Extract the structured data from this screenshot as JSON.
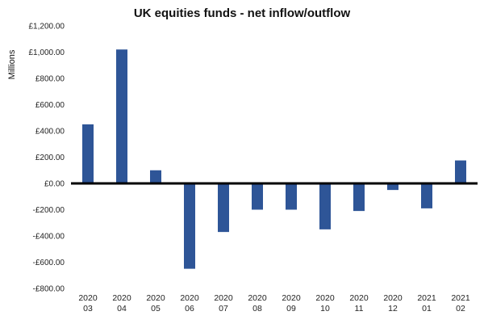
{
  "chart_data": {
    "type": "bar",
    "title": "UK equities funds - net inflow/outflow",
    "xlabel": "",
    "ylabel": "Millions",
    "ylim": [
      -800,
      1200
    ],
    "yticks": [
      1200,
      1000,
      800,
      600,
      400,
      200,
      0,
      -200,
      -400,
      -600,
      -800
    ],
    "ytick_labels": [
      "£1,200.00",
      "£1,000.00",
      "£800.00",
      "£600.00",
      "£400.00",
      "£200.00",
      "£0.00",
      "-£200.00",
      "-£400.00",
      "-£600.00",
      "-£800.00"
    ],
    "categories": [
      [
        "2020",
        "03"
      ],
      [
        "2020",
        "04"
      ],
      [
        "2020",
        "05"
      ],
      [
        "2020",
        "06"
      ],
      [
        "2020",
        "07"
      ],
      [
        "2020",
        "08"
      ],
      [
        "2020",
        "09"
      ],
      [
        "2020",
        "10"
      ],
      [
        "2020",
        "11"
      ],
      [
        "2020",
        "12"
      ],
      [
        "2021",
        "01"
      ],
      [
        "2021",
        "02"
      ]
    ],
    "values": [
      450,
      1020,
      100,
      -650,
      -370,
      -200,
      -200,
      -350,
      -210,
      -50,
      -190,
      175
    ],
    "bar_color": "#2e5597",
    "zero_line_color": "#000000",
    "grid": false,
    "legend": "none"
  }
}
